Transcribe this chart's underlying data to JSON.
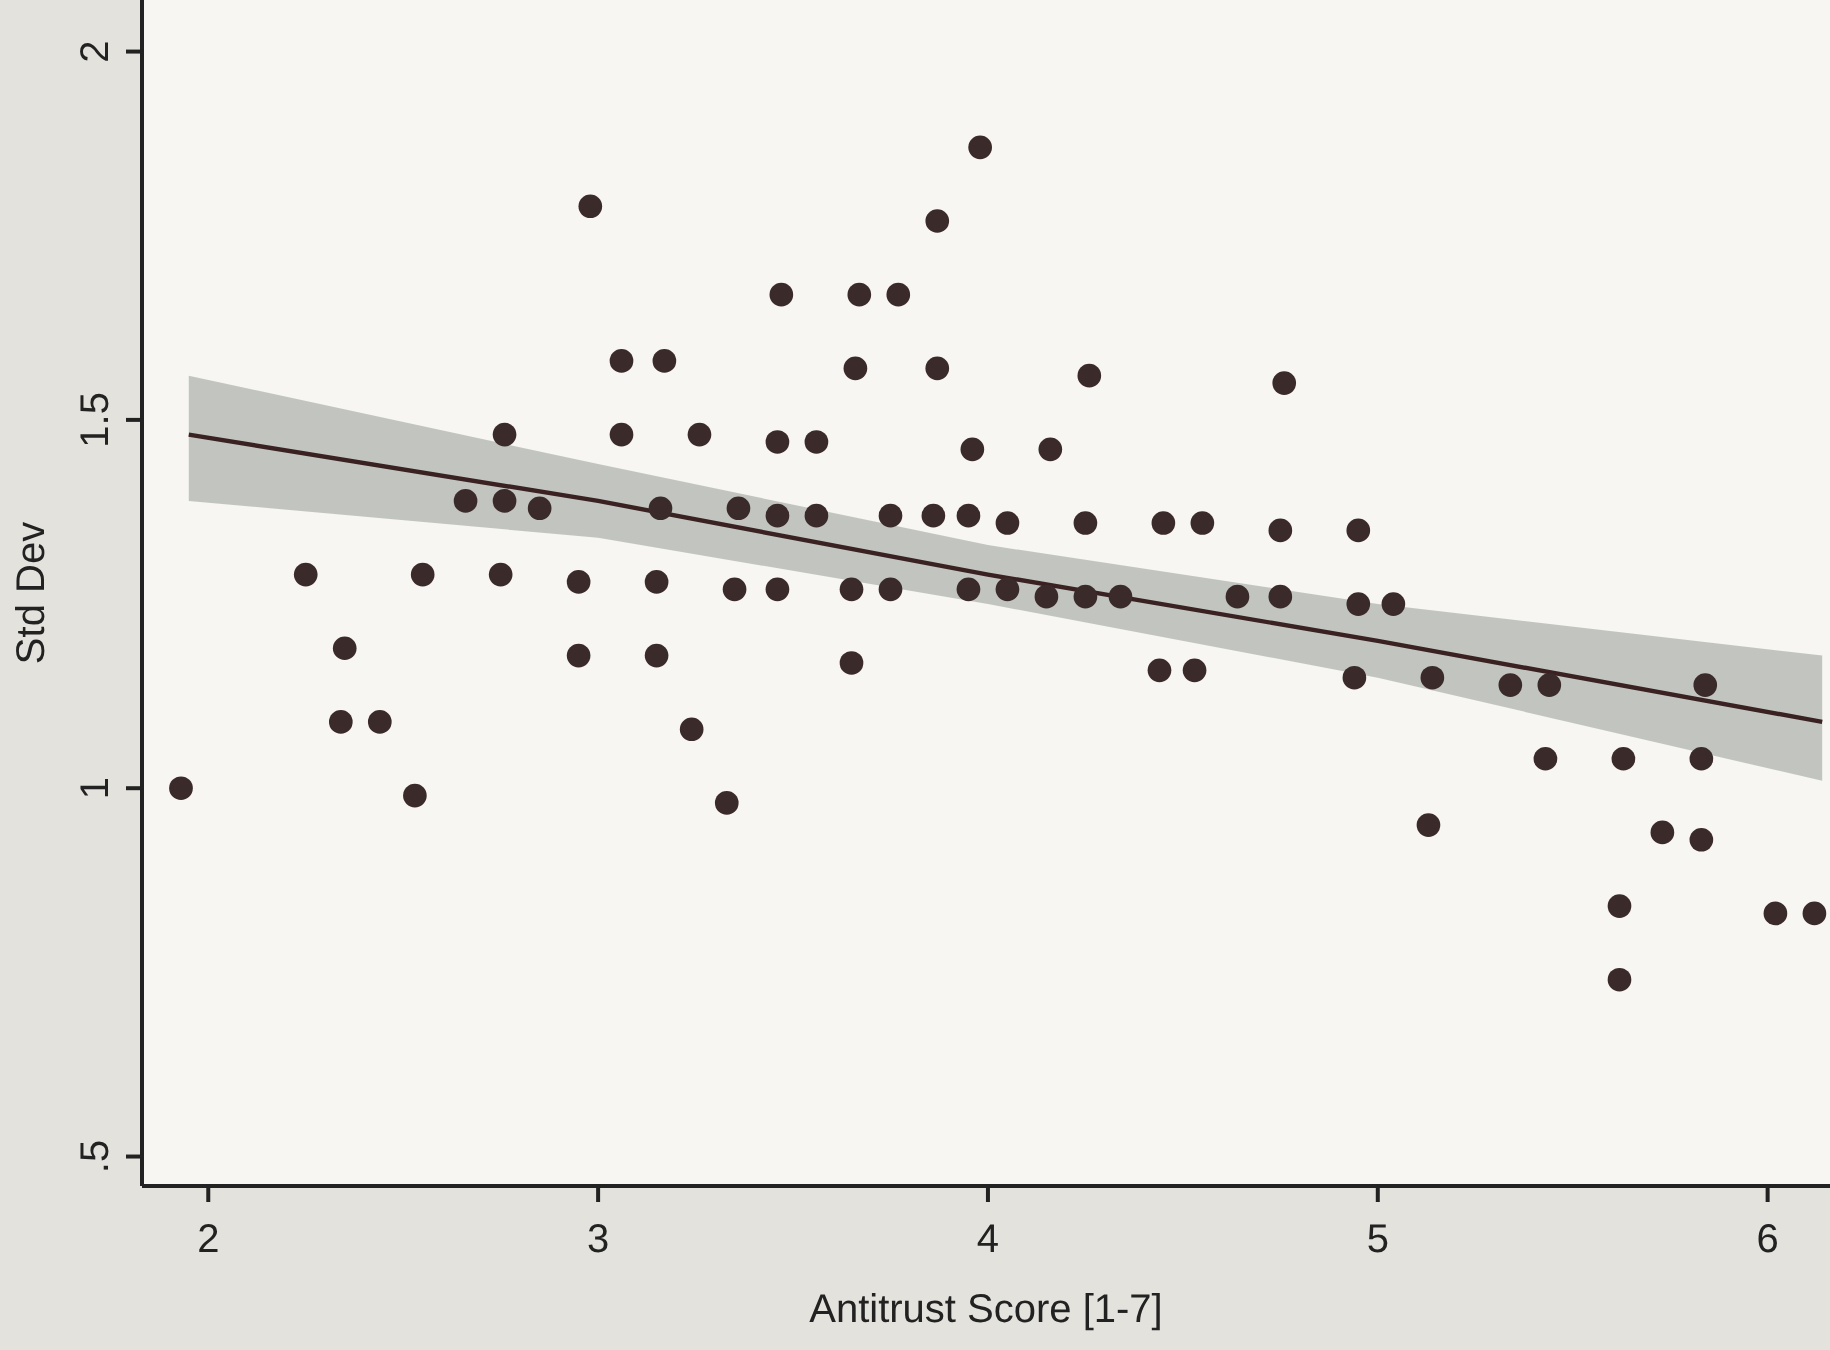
{
  "chart_data": {
    "type": "scatter",
    "xlabel": "Antitrust Score [1-7]",
    "ylabel": "Std Dev",
    "xlim": [
      1.83,
      6.16
    ],
    "ylim": [
      0.46,
      2.07
    ],
    "xticks": [
      2,
      3,
      4,
      5,
      6
    ],
    "yticks": [
      {
        "value": 0.5,
        "label": ".5"
      },
      1,
      1.5,
      2
    ],
    "marker": "circle",
    "grid": false,
    "series": [
      {
        "type": "line",
        "color": "#3a2222",
        "marker": "none",
        "line_style": "solid",
        "x": [
          1.95,
          3,
          4,
          5,
          6.14
        ],
        "values": [
          1.48,
          1.39,
          1.29,
          1.2,
          1.09
        ],
        "lower": [
          1.39,
          1.34,
          1.25,
          1.15,
          1.01
        ],
        "upper": [
          1.56,
          1.44,
          1.33,
          1.25,
          1.18
        ]
      },
      {
        "color": "#3a2a2a",
        "x": [
          2.98,
          3.06,
          3.17,
          2.76,
          3.06,
          3.26,
          2.66,
          2.76,
          2.85,
          3.16,
          2.25,
          2.55,
          2.75,
          2.95,
          3.15,
          2.35,
          2.95,
          3.15,
          1.93,
          2.34,
          2.44,
          2.53,
          3.24,
          3.33,
          3.65,
          4.44,
          4.53,
          3.98,
          3.87,
          3.47,
          3.67,
          3.77,
          3.66,
          3.87,
          4.26,
          4.76,
          3.46,
          3.56,
          3.96,
          4.16,
          3.36,
          3.46,
          3.56,
          3.75,
          3.86,
          3.95,
          4.05,
          4.25,
          4.45,
          4.55,
          4.75,
          3.35,
          3.46,
          3.65,
          3.75,
          3.95,
          4.05,
          4.15,
          4.25,
          4.34,
          4.64,
          4.75,
          4.95,
          4.95,
          5.04,
          4.94,
          5.14,
          5.34,
          5.44,
          5.84,
          5.43,
          5.63,
          5.83,
          5.13,
          5.73,
          5.83,
          5.62,
          6.02,
          6.12,
          5.62
        ],
        "values": [
          1.79,
          1.58,
          1.58,
          1.48,
          1.48,
          1.48,
          1.39,
          1.39,
          1.38,
          1.38,
          1.29,
          1.29,
          1.29,
          1.28,
          1.28,
          1.19,
          1.18,
          1.18,
          1.0,
          1.09,
          1.09,
          0.99,
          1.08,
          0.98,
          1.17,
          1.16,
          1.16,
          1.87,
          1.77,
          1.67,
          1.67,
          1.67,
          1.57,
          1.57,
          1.56,
          1.55,
          1.47,
          1.47,
          1.46,
          1.46,
          1.38,
          1.37,
          1.37,
          1.37,
          1.37,
          1.37,
          1.36,
          1.36,
          1.36,
          1.36,
          1.35,
          1.27,
          1.27,
          1.27,
          1.27,
          1.27,
          1.27,
          1.26,
          1.26,
          1.26,
          1.26,
          1.26,
          1.35,
          1.25,
          1.25,
          1.15,
          1.15,
          1.14,
          1.14,
          1.14,
          1.04,
          1.04,
          1.04,
          0.95,
          0.94,
          0.93,
          0.84,
          0.83,
          0.83,
          0.74
        ]
      }
    ]
  }
}
